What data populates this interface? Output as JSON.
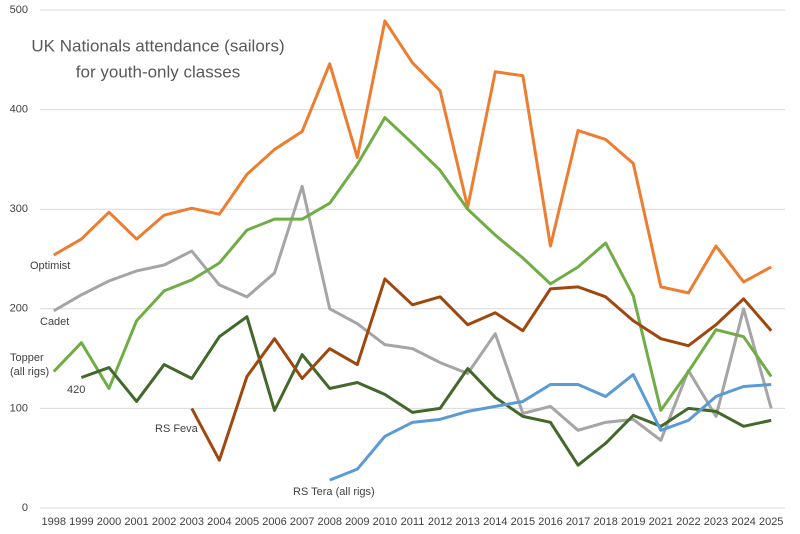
{
  "chart_data": {
    "type": "line",
    "title": "UK Nationals attendance (sailors)",
    "subtitle": "for youth-only classes",
    "categories": [
      "1998",
      "1999",
      "2000",
      "2001",
      "2002",
      "2003",
      "2004",
      "2005",
      "2006",
      "2007",
      "2008",
      "2009",
      "2010",
      "2011",
      "2012",
      "2013",
      "2014",
      "2015",
      "2016",
      "2017",
      "2018",
      "2019",
      "2021",
      "2022",
      "2023",
      "2024",
      "2025"
    ],
    "ylim": [
      0,
      500
    ],
    "yticks": [
      0,
      100,
      200,
      300,
      400,
      500
    ],
    "grid": true,
    "series": [
      {
        "name": "Optimist",
        "color": "#ed7d31",
        "values": [
          254,
          270,
          297,
          270,
          294,
          301,
          295,
          335,
          360,
          378,
          446,
          352,
          489,
          447,
          419,
          302,
          438,
          434,
          263,
          379,
          370,
          346,
          222,
          216,
          263,
          227,
          242
        ]
      },
      {
        "name": "Cadet",
        "color": "#a5a5a5",
        "values": [
          198,
          214,
          228,
          238,
          244,
          258,
          224,
          212,
          236,
          323,
          200,
          185,
          164,
          160,
          146,
          135,
          175,
          95,
          102,
          78,
          86,
          89,
          68,
          138,
          92,
          200,
          100
        ]
      },
      {
        "name": "Topper (all rigs)",
        "color": "#70ad47",
        "values": [
          137,
          166,
          120,
          188,
          218,
          229,
          246,
          279,
          290,
          290,
          306,
          345,
          392,
          366,
          339,
          300,
          274,
          251,
          225,
          242,
          266,
          213,
          98,
          137,
          179,
          172,
          132
        ]
      },
      {
        "name": "420",
        "color": "#43682b",
        "values": [
          null,
          131,
          141,
          107,
          144,
          130,
          172,
          192,
          98,
          154,
          120,
          126,
          114,
          96,
          100,
          140,
          111,
          92,
          86,
          43,
          65,
          93,
          82,
          100,
          97,
          82,
          88
        ]
      },
      {
        "name": "RS Feva",
        "color": "#9e480e",
        "values": [
          null,
          null,
          null,
          null,
          null,
          100,
          48,
          132,
          170,
          130,
          160,
          144,
          230,
          204,
          212,
          184,
          196,
          178,
          220,
          222,
          212,
          188,
          170,
          163,
          184,
          210,
          178
        ]
      },
      {
        "name": "RS Tera (all rigs)",
        "color": "#5b9bd5",
        "values": [
          null,
          null,
          null,
          null,
          null,
          null,
          null,
          null,
          null,
          null,
          28,
          39,
          72,
          86,
          89,
          97,
          102,
          107,
          124,
          124,
          112,
          134,
          78,
          88,
          112,
          122,
          124
        ]
      }
    ]
  }
}
